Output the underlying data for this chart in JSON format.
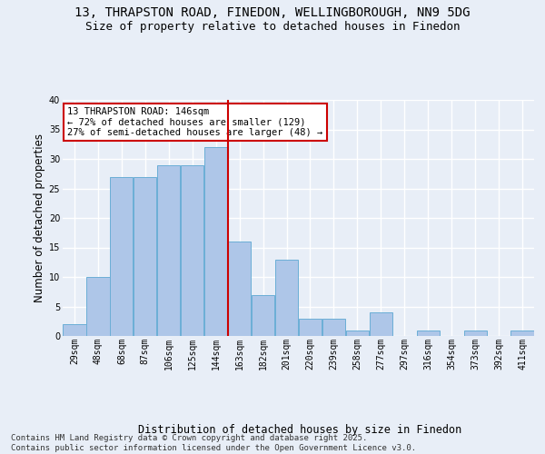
{
  "title1": "13, THRAPSTON ROAD, FINEDON, WELLINGBOROUGH, NN9 5DG",
  "title2": "Size of property relative to detached houses in Finedon",
  "xlabel": "Distribution of detached houses by size in Finedon",
  "ylabel": "Number of detached properties",
  "footer": "Contains HM Land Registry data © Crown copyright and database right 2025.\nContains public sector information licensed under the Open Government Licence v3.0.",
  "bin_labels": [
    "29sqm",
    "48sqm",
    "68sqm",
    "87sqm",
    "106sqm",
    "125sqm",
    "144sqm",
    "163sqm",
    "182sqm",
    "201sqm",
    "220sqm",
    "239sqm",
    "258sqm",
    "277sqm",
    "297sqm",
    "316sqm",
    "354sqm",
    "373sqm",
    "392sqm",
    "411sqm"
  ],
  "bar_heights": [
    2,
    10,
    27,
    27,
    29,
    29,
    32,
    16,
    7,
    13,
    3,
    3,
    1,
    4,
    0,
    1,
    0,
    1,
    0,
    1
  ],
  "bar_color": "#aec6e8",
  "bar_edge_color": "#6baed6",
  "vline_index": 6,
  "annotation_text": "13 THRAPSTON ROAD: 146sqm\n← 72% of detached houses are smaller (129)\n27% of semi-detached houses are larger (48) →",
  "annotation_box_color": "#ffffff",
  "annotation_box_edge": "#cc0000",
  "vline_color": "#cc0000",
  "ylim": [
    0,
    40
  ],
  "yticks": [
    0,
    5,
    10,
    15,
    20,
    25,
    30,
    35,
    40
  ],
  "bg_color": "#e8eef7",
  "plot_bg_color": "#e8eef7",
  "grid_color": "#ffffff",
  "title_fontsize": 10,
  "subtitle_fontsize": 9,
  "axis_label_fontsize": 8.5,
  "tick_fontsize": 7,
  "footer_fontsize": 6.5,
  "annotation_fontsize": 7.5
}
